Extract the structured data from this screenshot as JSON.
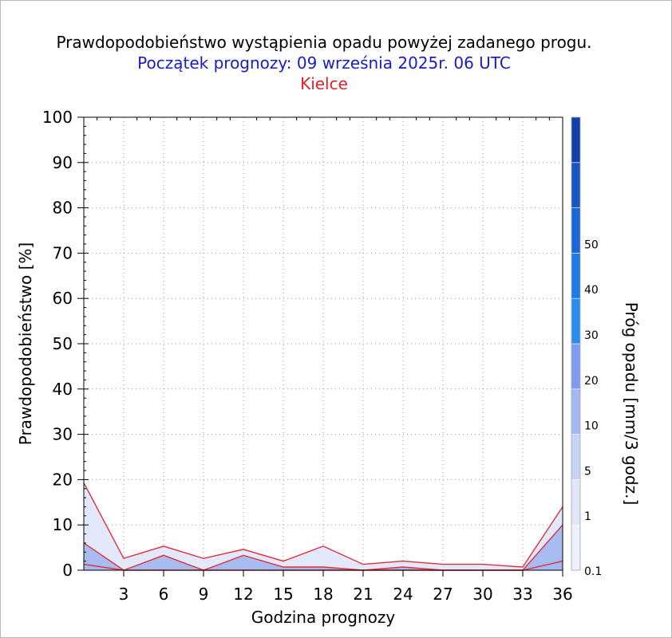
{
  "title": "Prawdopodobieństwo wystąpienia opadu powyżej zadanego progu.",
  "subtitle": "Początek prognozy: 09 września 2025r. 06 UTC",
  "station": "Kielce",
  "colors": {
    "title": "#000000",
    "subtitle": "#1a1acc",
    "station": "#e0202a",
    "outline": "#e0303a",
    "fill_low": "#e3e8fb",
    "fill_mid": "#a9bcf2"
  },
  "chart_data": {
    "type": "area",
    "xlabel": "Godzina prognozy",
    "ylabel": "Prawdopodobieństwo [%]",
    "x": [
      0,
      3,
      6,
      9,
      12,
      15,
      18,
      21,
      24,
      27,
      30,
      33,
      36
    ],
    "x_ticks": [
      "3",
      "6",
      "9",
      "12",
      "15",
      "18",
      "21",
      "24",
      "27",
      "30",
      "33",
      "36"
    ],
    "xlim": [
      0,
      36
    ],
    "y_ticks": [
      "0",
      "10",
      "20",
      "30",
      "40",
      "50",
      "60",
      "70",
      "80",
      "90",
      "100"
    ],
    "ylim": [
      0,
      100
    ],
    "grid": true,
    "series": [
      {
        "threshold": 0.1,
        "values": [
          19.3,
          2.6,
          5.3,
          2.6,
          4.6,
          2,
          5.3,
          1.3,
          2,
          1.3,
          1.3,
          0.7,
          14
        ]
      },
      {
        "threshold": 1,
        "values": [
          6,
          0,
          3.3,
          0,
          3.3,
          0.7,
          0.7,
          0,
          0.7,
          0,
          0,
          0,
          10
        ]
      },
      {
        "threshold": 5,
        "values": [
          1.3,
          0,
          0,
          0,
          0,
          0,
          0,
          0,
          0,
          0,
          0,
          0,
          2
        ]
      }
    ],
    "colorbar": {
      "label": "Próg opadu [mm/3 godz.]",
      "ticks": [
        "0.1",
        "1",
        "5",
        "10",
        "20",
        "30",
        "40",
        "50"
      ],
      "colors": [
        "#eef1fd",
        "#e0e7fb",
        "#c6d3f8",
        "#a3b9f4",
        "#7d9cf0",
        "#2b8cf0",
        "#1d7ae6",
        "#1a66d8",
        "#1756c4",
        "#123fa8"
      ]
    }
  }
}
